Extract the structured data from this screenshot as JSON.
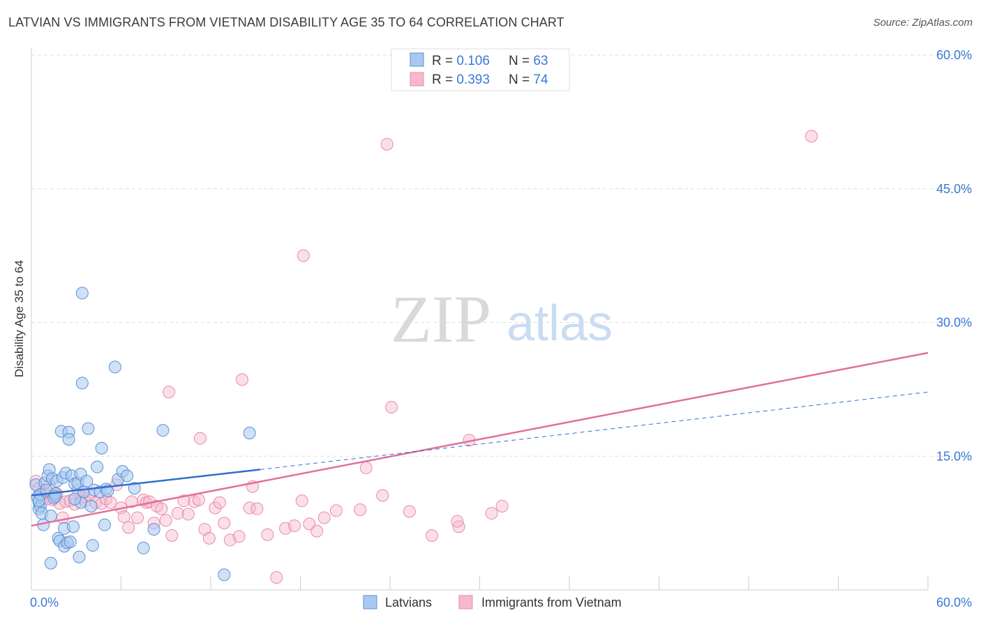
{
  "header": {
    "title": "LATVIAN VS IMMIGRANTS FROM VIETNAM DISABILITY AGE 35 TO 64 CORRELATION CHART",
    "source": "Source: ZipAtlas.com"
  },
  "watermark": {
    "zip": "ZIP",
    "atlas": "atlas"
  },
  "legend_top": {
    "rows": [
      {
        "r_label": "R = ",
        "r_value": "0.106",
        "n_label": "N = ",
        "n_value": "63"
      },
      {
        "r_label": "R = ",
        "r_value": "0.393",
        "n_label": "N = ",
        "n_value": "74"
      }
    ]
  },
  "legend_bottom": [
    "Latvians",
    "Immigrants from Vietnam"
  ],
  "chart_data": {
    "type": "scatter",
    "title": "LATVIAN VS IMMIGRANTS FROM VIETNAM DISABILITY AGE 35 TO 64 CORRELATION CHART",
    "xlabel": "",
    "ylabel": "Disability Age 35 to 64",
    "xlim": [
      0,
      60
    ],
    "ylim": [
      0,
      60
    ],
    "x_tick_labels": [
      "0.0%",
      "60.0%"
    ],
    "y_tick_labels": [
      "15.0%",
      "30.0%",
      "45.0%",
      "60.0%"
    ],
    "y_ticks": [
      15,
      30,
      45,
      60
    ],
    "grid": true,
    "legend_position": "bottom",
    "colors": {
      "latvians_fill": "#a8c8f0",
      "latvians_stroke": "#5b8fd6",
      "latvians_line": "#2f6fce",
      "vietnam_fill": "#f7b8cb",
      "vietnam_stroke": "#e88aa8",
      "vietnam_line": "#e0709a",
      "tick_text": "#3a78d4"
    },
    "series": [
      {
        "name": "Latvians",
        "r": 0.106,
        "n": 63,
        "trend": {
          "x": [
            0,
            15.3
          ],
          "y": [
            10.6,
            13.5
          ]
        },
        "trend_dashed": {
          "x": [
            15.3,
            60
          ],
          "y": [
            13.5,
            22.2
          ]
        },
        "points": [
          [
            0.3,
            11.8
          ],
          [
            0.4,
            10.4
          ],
          [
            0.5,
            9.9
          ],
          [
            0.5,
            9.1
          ],
          [
            0.6,
            10.7
          ],
          [
            0.6,
            9.4
          ],
          [
            0.7,
            8.6
          ],
          [
            0.8,
            7.3
          ],
          [
            0.9,
            12.0
          ],
          [
            1.0,
            11.2
          ],
          [
            1.1,
            12.8
          ],
          [
            1.2,
            13.5
          ],
          [
            1.3,
            8.3
          ],
          [
            1.3,
            3.0
          ],
          [
            1.4,
            12.5
          ],
          [
            1.5,
            10.3
          ],
          [
            1.6,
            10.8
          ],
          [
            1.7,
            12.2
          ],
          [
            1.8,
            5.8
          ],
          [
            1.9,
            5.5
          ],
          [
            2.0,
            17.8
          ],
          [
            2.1,
            12.6
          ],
          [
            2.2,
            4.9
          ],
          [
            2.2,
            6.9
          ],
          [
            2.3,
            13.1
          ],
          [
            2.4,
            5.3
          ],
          [
            2.5,
            17.7
          ],
          [
            2.5,
            16.9
          ],
          [
            2.6,
            5.4
          ],
          [
            2.7,
            12.8
          ],
          [
            2.8,
            7.1
          ],
          [
            2.9,
            11.9
          ],
          [
            3.1,
            12.0
          ],
          [
            3.2,
            3.7
          ],
          [
            3.3,
            13.0
          ],
          [
            3.3,
            9.8
          ],
          [
            3.4,
            33.3
          ],
          [
            3.4,
            23.2
          ],
          [
            3.5,
            11.0
          ],
          [
            3.7,
            12.2
          ],
          [
            3.8,
            18.1
          ],
          [
            4.0,
            9.4
          ],
          [
            4.1,
            5.0
          ],
          [
            4.2,
            11.2
          ],
          [
            4.4,
            13.8
          ],
          [
            4.6,
            11.0
          ],
          [
            4.7,
            15.9
          ],
          [
            4.9,
            7.3
          ],
          [
            5.0,
            11.3
          ],
          [
            5.1,
            11.1
          ],
          [
            5.6,
            25.0
          ],
          [
            5.8,
            12.4
          ],
          [
            6.1,
            13.3
          ],
          [
            6.4,
            12.8
          ],
          [
            6.9,
            11.4
          ],
          [
            7.5,
            4.7
          ],
          [
            8.2,
            6.8
          ],
          [
            8.8,
            17.9
          ],
          [
            12.9,
            1.7
          ],
          [
            14.6,
            17.6
          ],
          [
            0.5,
            10.0
          ],
          [
            1.6,
            10.5
          ],
          [
            2.9,
            10.2
          ]
        ]
      },
      {
        "name": "Immigrants from Vietnam",
        "r": 0.393,
        "n": 74,
        "trend": {
          "x": [
            0,
            60
          ],
          "y": [
            7.2,
            26.6
          ]
        },
        "points": [
          [
            0.3,
            12.2
          ],
          [
            0.5,
            11.4
          ],
          [
            0.6,
            10.6
          ],
          [
            0.8,
            11.0
          ],
          [
            1.0,
            10.2
          ],
          [
            1.2,
            11.8
          ],
          [
            1.4,
            10.1
          ],
          [
            1.7,
            10.8
          ],
          [
            1.9,
            9.7
          ],
          [
            2.1,
            8.1
          ],
          [
            2.3,
            9.9
          ],
          [
            2.6,
            10.0
          ],
          [
            2.9,
            9.6
          ],
          [
            3.1,
            11.2
          ],
          [
            3.4,
            10.4
          ],
          [
            3.6,
            10.0
          ],
          [
            3.9,
            10.6
          ],
          [
            4.3,
            9.8
          ],
          [
            4.7,
            9.7
          ],
          [
            5.0,
            10.2
          ],
          [
            5.3,
            9.8
          ],
          [
            5.7,
            11.8
          ],
          [
            6.0,
            9.2
          ],
          [
            6.2,
            8.2
          ],
          [
            6.5,
            7.0
          ],
          [
            6.7,
            9.9
          ],
          [
            7.1,
            8.1
          ],
          [
            7.5,
            10.1
          ],
          [
            7.7,
            9.8
          ],
          [
            7.9,
            9.9
          ],
          [
            8.2,
            7.5
          ],
          [
            8.4,
            9.4
          ],
          [
            8.7,
            9.1
          ],
          [
            9.0,
            7.8
          ],
          [
            9.2,
            22.2
          ],
          [
            9.4,
            6.1
          ],
          [
            9.8,
            8.6
          ],
          [
            10.2,
            10.0
          ],
          [
            10.5,
            8.5
          ],
          [
            10.9,
            9.9
          ],
          [
            11.2,
            10.1
          ],
          [
            11.3,
            17.0
          ],
          [
            11.6,
            6.8
          ],
          [
            11.9,
            5.8
          ],
          [
            12.3,
            9.2
          ],
          [
            12.6,
            9.8
          ],
          [
            12.9,
            7.5
          ],
          [
            13.3,
            5.6
          ],
          [
            13.9,
            6.0
          ],
          [
            14.1,
            23.6
          ],
          [
            14.6,
            9.2
          ],
          [
            14.8,
            11.6
          ],
          [
            15.1,
            9.1
          ],
          [
            15.8,
            6.2
          ],
          [
            16.4,
            1.4
          ],
          [
            17.0,
            6.9
          ],
          [
            17.6,
            7.2
          ],
          [
            18.1,
            10.0
          ],
          [
            18.6,
            7.4
          ],
          [
            19.1,
            6.6
          ],
          [
            19.6,
            8.1
          ],
          [
            20.4,
            8.9
          ],
          [
            22.0,
            9.0
          ],
          [
            22.4,
            13.7
          ],
          [
            23.5,
            10.6
          ],
          [
            23.8,
            50.0
          ],
          [
            24.1,
            20.5
          ],
          [
            25.3,
            8.8
          ],
          [
            26.8,
            6.1
          ],
          [
            28.6,
            7.1
          ],
          [
            29.3,
            16.8
          ],
          [
            30.8,
            8.6
          ],
          [
            31.5,
            9.4
          ],
          [
            52.2,
            50.9
          ]
        ]
      }
    ],
    "extra_vietnam": [
      [
        18.2,
        37.5
      ],
      [
        28.5,
        7.7
      ]
    ]
  }
}
